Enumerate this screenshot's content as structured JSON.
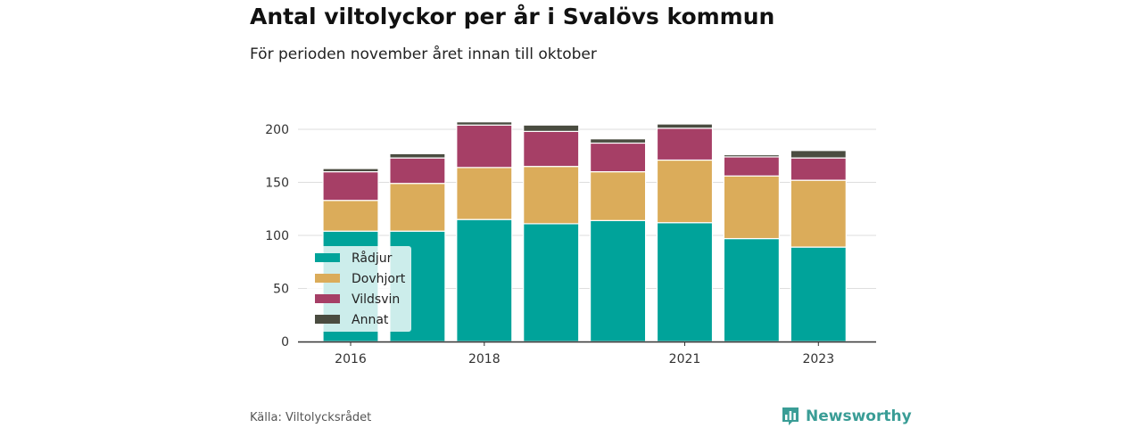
{
  "title": "Antal viltolyckor per år i Svalövs kommun",
  "subtitle": "För perioden november året innan till oktober",
  "source": "Källa: Viltolycksrådet",
  "brand": {
    "name": "Newsworthy",
    "icon": "newsworthy-logo-icon",
    "color": "#3a9d96"
  },
  "chart_data": {
    "type": "bar",
    "stacked": true,
    "categories": [
      "2016",
      "2017",
      "2018",
      "2019",
      "2020",
      "2021",
      "2022",
      "2023"
    ],
    "x_tick_labels": [
      "2016",
      "2018",
      "2021",
      "2023"
    ],
    "series": [
      {
        "name": "Rådjur",
        "color": "#00a39a",
        "values": [
          104,
          104,
          115,
          111,
          114,
          112,
          97,
          89
        ]
      },
      {
        "name": "Dovhjort",
        "color": "#dbac5a",
        "values": [
          29,
          45,
          49,
          54,
          46,
          59,
          59,
          63
        ]
      },
      {
        "name": "Vildsvin",
        "color": "#a63f66",
        "values": [
          27,
          24,
          40,
          33,
          27,
          30,
          18,
          21
        ]
      },
      {
        "name": "Annat",
        "color": "#4a4c40",
        "values": [
          3,
          4,
          3,
          6,
          4,
          4,
          2,
          7
        ]
      }
    ],
    "ylim": [
      0,
      210
    ],
    "yticks": [
      0,
      50,
      100,
      150,
      200
    ],
    "grid": true,
    "legend": "bottom-left, inside plot"
  }
}
